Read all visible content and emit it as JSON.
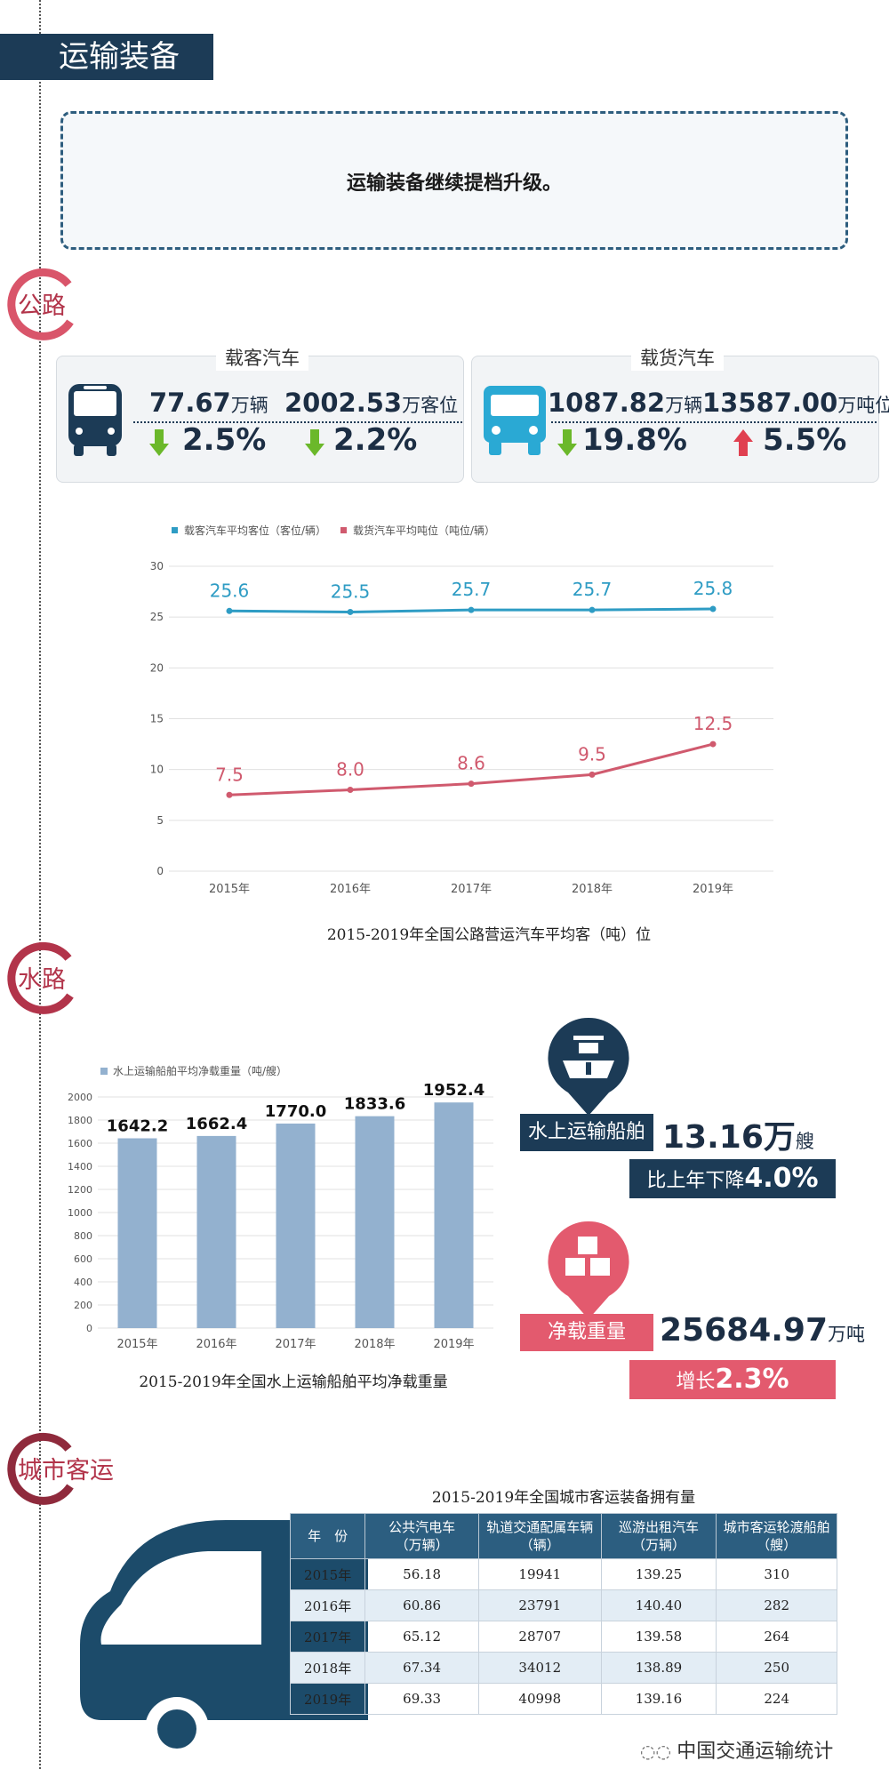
{
  "header": {
    "title": "运输装备"
  },
  "intro": {
    "text": "运输装备继续提档升级。"
  },
  "highway": {
    "section_label": "公路",
    "passenger": {
      "title": "载客汽车",
      "vehicles": {
        "value": "77.67",
        "unit": "万辆",
        "change": "2.5%",
        "direction": "down"
      },
      "seats": {
        "value": "2002.53",
        "unit": "万客位",
        "change": "2.2%",
        "direction": "down"
      }
    },
    "freight": {
      "title": "载货汽车",
      "vehicles": {
        "value": "1087.82",
        "unit": "万辆",
        "change": "19.8%",
        "direction": "down"
      },
      "tonnage": {
        "value": "13587.00",
        "unit": "万吨位",
        "change": "5.5%",
        "direction": "up"
      }
    },
    "chart_caption": "2015-2019年全国公路营运汽车平均客（吨）位"
  },
  "water": {
    "section_label": "水路",
    "chart_caption": "2015-2019年全国水上运输船舶平均净载重量",
    "ships": {
      "label": "水上运输船舶",
      "value": "13.16",
      "unit1": "万",
      "unit2": "艘",
      "change_text": "比上年下降",
      "change": "4.0%"
    },
    "deadweight": {
      "label": "净载重量",
      "value": "25684.97",
      "unit": "万吨",
      "change_text": "增长",
      "change": "2.3%"
    }
  },
  "city": {
    "section_label": "城市客运",
    "table_title": "2015-2019年全国城市客运装备拥有量",
    "headers": [
      [
        "年　份",
        ""
      ],
      [
        "公共汽电车",
        "（万辆）"
      ],
      [
        "轨道交通配属车辆",
        "（辆）"
      ],
      [
        "巡游出租汽车",
        "（万辆）"
      ],
      [
        "城市客运轮渡船舶",
        "（艘）"
      ]
    ],
    "rows": [
      [
        "2015年",
        "56.18",
        "19941",
        "139.25",
        "310"
      ],
      [
        "2016年",
        "60.86",
        "23791",
        "140.40",
        "282"
      ],
      [
        "2017年",
        "65.12",
        "28707",
        "139.58",
        "264"
      ],
      [
        "2018年",
        "67.34",
        "34012",
        "138.89",
        "250"
      ],
      [
        "2019年",
        "69.33",
        "40998",
        "139.16",
        "224"
      ]
    ]
  },
  "watermark": {
    "text": "中国交通运输统计"
  },
  "colors": {
    "navy": "#1c3b56",
    "line_blue": "#2e9cc4",
    "line_red": "#d05a6e",
    "bar_blue": "#93b1cf",
    "pink": "#e35a6e",
    "green": "#6bb82a",
    "red": "#e04050"
  },
  "chart_data": [
    {
      "type": "line",
      "x": [
        "2015年",
        "2016年",
        "2017年",
        "2018年",
        "2019年"
      ],
      "series": [
        {
          "name": "载客汽车平均客位（客位/辆）",
          "values": [
            25.6,
            25.5,
            25.7,
            25.7,
            25.8
          ],
          "labels": [
            "25.6",
            "25.5",
            "25.7",
            "25.7",
            "25.8"
          ]
        },
        {
          "name": "载货汽车平均吨位（吨位/辆）",
          "values": [
            7.5,
            8.0,
            8.6,
            9.5,
            12.5
          ],
          "labels": [
            "7.5",
            "8.0",
            "8.6",
            "9.5",
            "12.5"
          ]
        }
      ],
      "yticks": [
        "0",
        "5",
        "10",
        "15",
        "20",
        "25",
        "30"
      ],
      "ylim": [
        0,
        30
      ],
      "grid": true,
      "legend": "top-left"
    },
    {
      "type": "bar",
      "categories": [
        "2015年",
        "2016年",
        "2017年",
        "2018年",
        "2019年"
      ],
      "series": [
        {
          "name": "水上运输船舶平均净载重量（吨/艘）",
          "values": [
            1642.2,
            1662.4,
            1770.0,
            1833.6,
            1952.4
          ],
          "labels": [
            "1642.2",
            "1662.4",
            "1770.0",
            "1833.6",
            "1952.4"
          ]
        }
      ],
      "yticks": [
        "0",
        "200",
        "400",
        "600",
        "800",
        "1000",
        "1200",
        "1400",
        "1600",
        "1800",
        "2000"
      ],
      "ylim": [
        0,
        2000
      ],
      "grid": true,
      "legend": "top-left"
    }
  ]
}
